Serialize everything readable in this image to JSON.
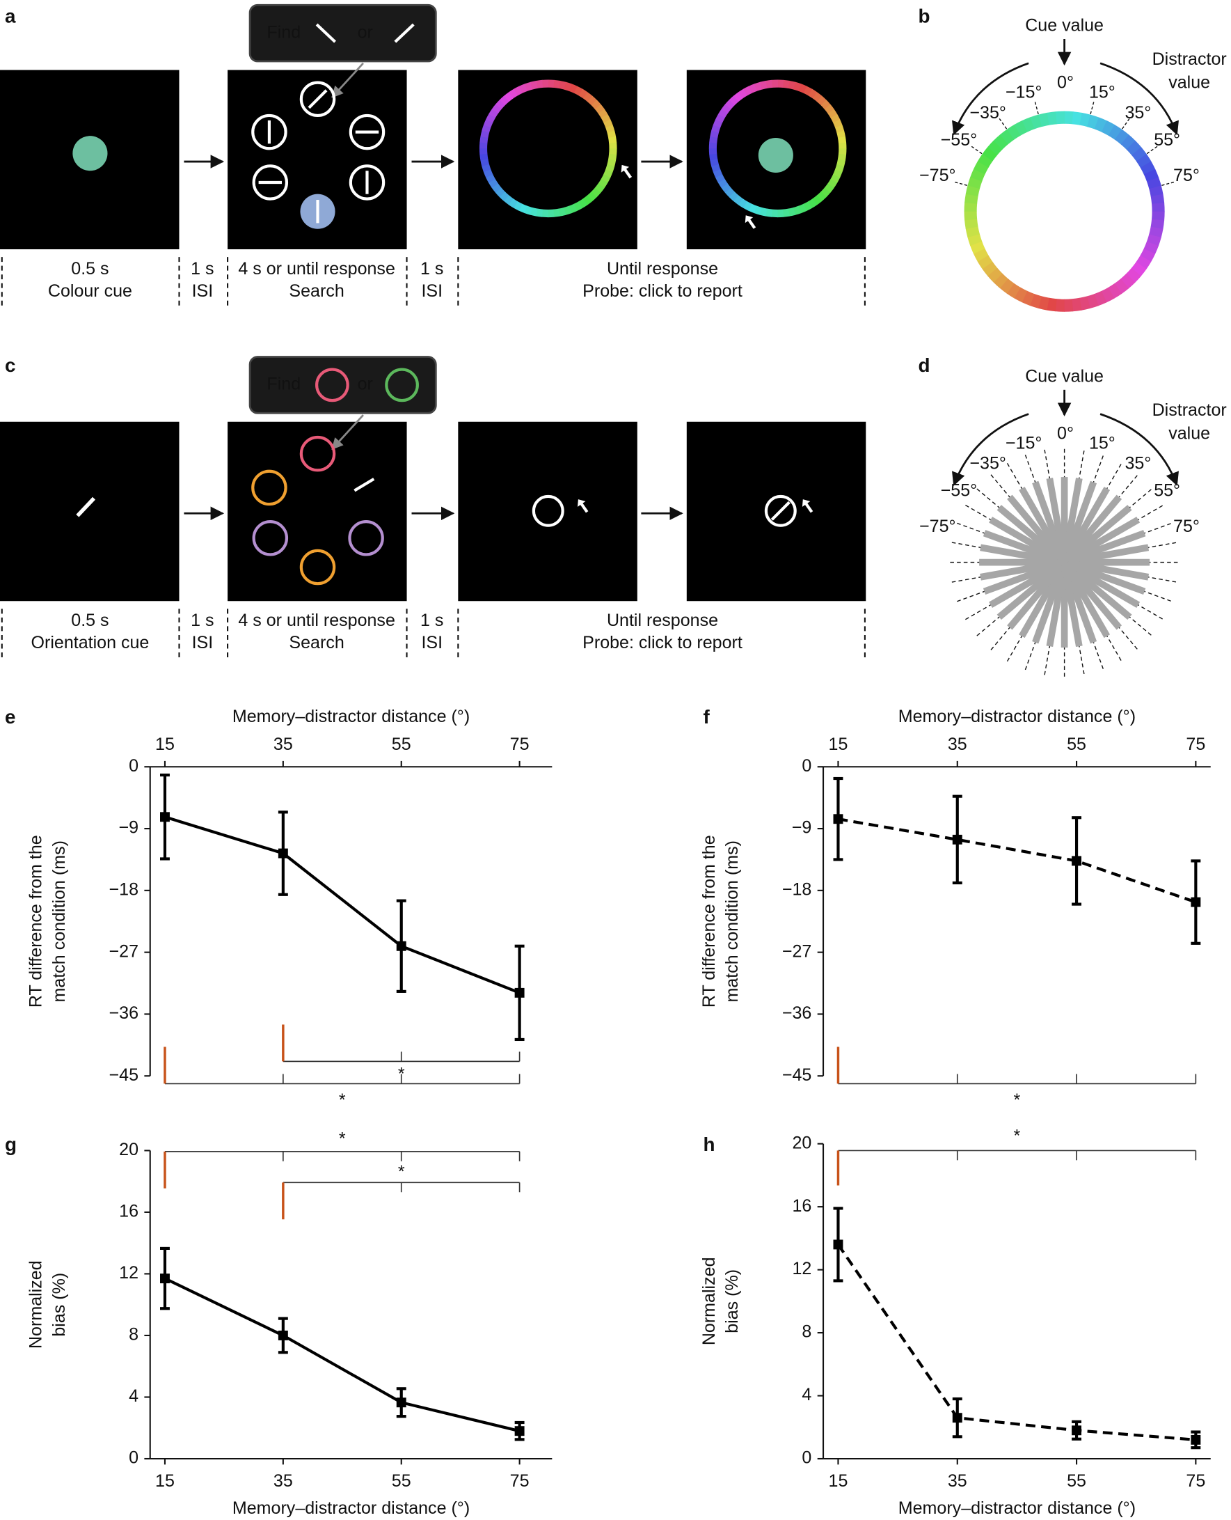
{
  "panel_labels": [
    "a",
    "b",
    "c",
    "d",
    "e",
    "f",
    "g",
    "h"
  ],
  "row_a": {
    "find": "Find",
    "or": "or",
    "cue": [
      "0.5 s",
      "Colour cue"
    ],
    "isi1": [
      "1 s",
      "ISI"
    ],
    "search": [
      "4 s or until response",
      "Search"
    ],
    "isi2": [
      "1 s",
      "ISI"
    ],
    "probe": [
      "Until response",
      "Probe: click to report"
    ]
  },
  "row_c": {
    "find": "Find",
    "or": "or",
    "cue": [
      "0.5 s",
      "Orientation cue"
    ],
    "isi1": [
      "1 s",
      "ISI"
    ],
    "search": [
      "4 s or until response",
      "Search"
    ],
    "isi2": [
      "1 s",
      "ISI"
    ],
    "probe": [
      "Until response",
      "Probe: click to report"
    ]
  },
  "wheel_b": {
    "cue_label": "Cue value",
    "distractor_label": [
      "Distractor",
      "value"
    ],
    "angle_labels": [
      "−75°",
      "−55°",
      "−35°",
      "−15°",
      "0°",
      "15°",
      "35°",
      "55°",
      "75°"
    ]
  },
  "wheel_d": {
    "cue_label": "Cue value",
    "distractor_label": [
      "Distractor",
      "value"
    ],
    "angle_labels": [
      "−75°",
      "−55°",
      "−35°",
      "−15°",
      "0°",
      "15°",
      "35°",
      "55°",
      "75°"
    ]
  },
  "chart_data": [
    {
      "type": "line",
      "xlabel": "Memory–distractor distance (°)",
      "ylabel": [
        "RT difference from the",
        "match condition (ms)"
      ],
      "x": [
        15,
        35,
        55,
        75
      ],
      "xlim": [
        12.5,
        80.5
      ],
      "xticks": [
        15,
        35,
        55,
        75
      ],
      "xaxis": "top",
      "ylim": [
        -45,
        0
      ],
      "yticks": [
        {
          "value": -45,
          "label": "−45"
        },
        {
          "value": -36,
          "label": "−36"
        },
        {
          "value": -27,
          "label": "−27"
        },
        {
          "value": -18,
          "label": "−18"
        },
        {
          "value": -9,
          "label": "−9"
        },
        0
      ],
      "series": [
        {
          "color": "#000000",
          "linestyle": "solid",
          "values": [
            -7.3,
            -12.6,
            -26.1,
            -32.9
          ],
          "errors": [
            6.1,
            6.0,
            6.6,
            6.8
          ]
        }
      ],
      "brackets": [
        {
          "from": 35,
          "to": 75,
          "label": "*"
        },
        {
          "from": 15,
          "to": 75,
          "label": "*"
        }
      ]
    },
    {
      "type": "line",
      "xlabel": "Memory–distractor distance (°)",
      "ylabel": [
        "RT difference from the",
        "match condition (ms)"
      ],
      "x": [
        15,
        35,
        55,
        75
      ],
      "xlim": [
        12.5,
        77.5
      ],
      "xticks": [
        15,
        35,
        55,
        75
      ],
      "xaxis": "top",
      "ylim": [
        -45,
        0
      ],
      "yticks": [
        {
          "value": -45,
          "label": "−45"
        },
        {
          "value": -36,
          "label": "−36"
        },
        {
          "value": -27,
          "label": "−27"
        },
        {
          "value": -18,
          "label": "−18"
        },
        {
          "value": -9,
          "label": "−9"
        },
        0
      ],
      "series": [
        {
          "color": "#000000",
          "linestyle": "dashed",
          "values": [
            -7.6,
            -10.6,
            -13.7,
            -19.7
          ],
          "errors": [
            5.9,
            6.3,
            6.3,
            6.0
          ]
        }
      ],
      "brackets": [
        {
          "from": 15,
          "to": 75,
          "label": "*"
        }
      ]
    },
    {
      "type": "line",
      "xlabel": "Memory–distractor distance (°)",
      "ylabel": [
        "Normalized",
        "bias (%)"
      ],
      "x": [
        15,
        35,
        55,
        75
      ],
      "xlim": [
        12.5,
        80.5
      ],
      "xticks": [
        15,
        35,
        55,
        75
      ],
      "xaxis": "bottom",
      "ylim": [
        0,
        20
      ],
      "yticks": [
        0,
        4,
        8,
        12,
        16,
        20
      ],
      "series": [
        {
          "color": "#000000",
          "linestyle": "solid",
          "values": [
            11.7,
            8.0,
            3.65,
            1.8
          ],
          "errors": [
            1.95,
            1.1,
            0.9,
            0.55
          ]
        }
      ],
      "brackets": [
        {
          "from": 15,
          "to": 75,
          "label": "*"
        },
        {
          "from": 35,
          "to": 75,
          "label": "*"
        }
      ]
    },
    {
      "type": "line",
      "xlabel": "Memory–distractor distance (°)",
      "ylabel": [
        "Normalized",
        "bias (%)"
      ],
      "x": [
        15,
        35,
        55,
        75
      ],
      "xlim": [
        12.5,
        77.5
      ],
      "xticks": [
        15,
        35,
        55,
        75
      ],
      "xaxis": "bottom",
      "ylim": [
        0,
        20
      ],
      "yticks": [
        0,
        4,
        8,
        12,
        16,
        20
      ],
      "series": [
        {
          "color": "#000000",
          "linestyle": "dashed",
          "values": [
            13.6,
            2.6,
            1.8,
            1.2
          ],
          "errors": [
            2.3,
            1.2,
            0.55,
            0.5
          ]
        }
      ],
      "brackets": [
        {
          "from": 15,
          "to": 75,
          "label": "*"
        }
      ]
    }
  ]
}
